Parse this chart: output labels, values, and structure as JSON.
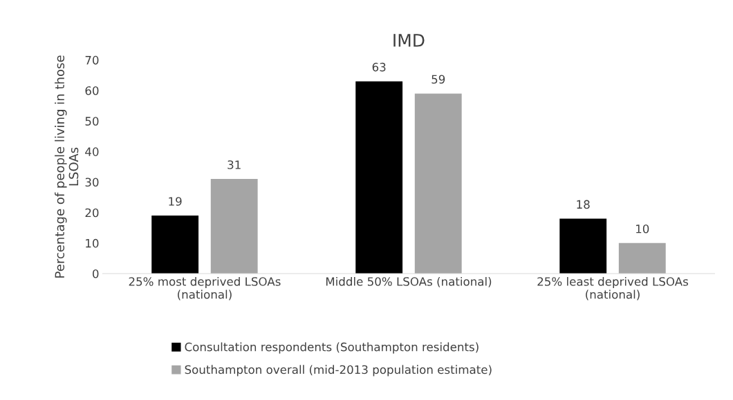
{
  "chart_data": {
    "type": "bar",
    "title": "IMD",
    "ylabel": "Percentage of people living in those\nLSOAs",
    "categories": [
      "25% most deprived LSOAs\n(national)",
      "Middle 50% LSOAs (national)",
      "25% least deprived LSOAs\n(national)"
    ],
    "series": [
      {
        "name": "Consultation respondents (Southampton residents)",
        "color": "#000000",
        "values": [
          19,
          63,
          18
        ]
      },
      {
        "name": "Southampton overall (mid-2013 population estimate)",
        "color": "#a5a5a5",
        "values": [
          31,
          59,
          10
        ]
      }
    ],
    "ylim": [
      0,
      70
    ],
    "yticks": [
      0,
      10,
      20,
      30,
      40,
      50,
      60,
      70
    ],
    "data_labels": true,
    "grid": false,
    "legend": "bottom"
  }
}
